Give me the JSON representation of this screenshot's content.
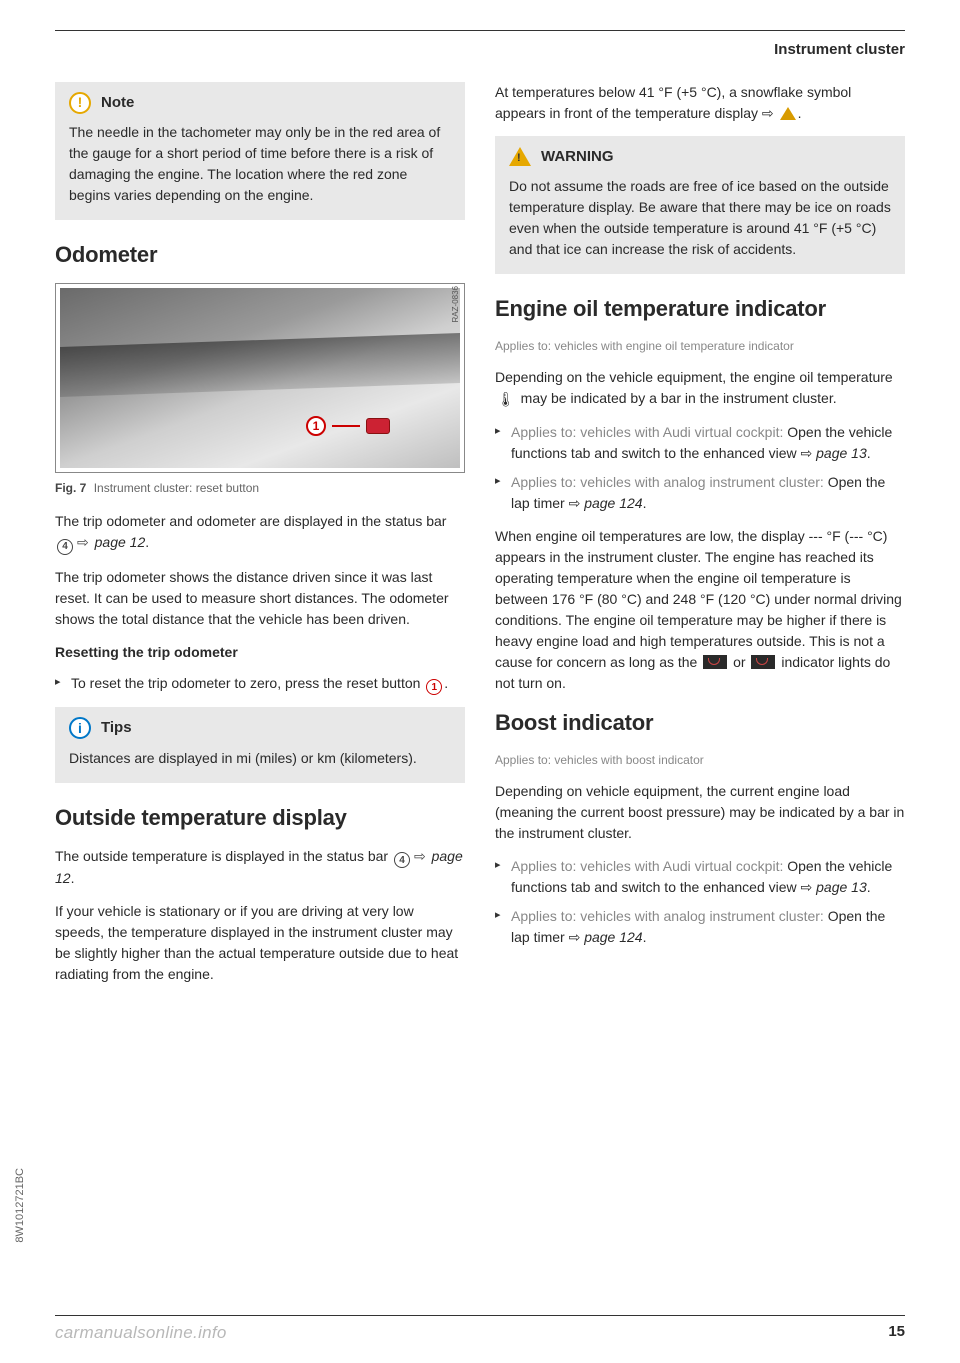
{
  "header": {
    "section_title": "Instrument cluster"
  },
  "left": {
    "note": {
      "title": "Note",
      "body": "The needle in the tachometer may only be in the red area of the gauge for a short period of time before there is a risk of damaging the engine. The location where the red zone begins varies depending on the engine."
    },
    "h_odometer": "Odometer",
    "fig7": {
      "side_label": "RAZ-0836",
      "callout_num": "1",
      "caption_label": "Fig. 7",
      "caption_text": "Instrument cluster: reset button"
    },
    "p_odo1_a": "The trip odometer and odometer are displayed in the status bar ",
    "ref4": "4",
    "p_odo1_b": " page 12",
    "p_odo1_c": ".",
    "p_odo2": "The trip odometer shows the distance driven since it was last reset. It can be used to measure short distances. The odometer shows the total distance that the vehicle has been driven.",
    "sub_reset": "Resetting the trip odometer",
    "li_reset_a": "To reset the trip odometer to zero, press the reset button ",
    "ref1": "1",
    "li_reset_b": ".",
    "tips": {
      "title": "Tips",
      "body": "Distances are displayed in mi (miles) or km (kilometers)."
    },
    "h_temp": "Outside temperature display",
    "p_temp1_a": "The outside temperature is displayed in the status bar ",
    "p_temp1_b": " page 12",
    "p_temp1_c": ".",
    "p_temp2": "If your vehicle is stationary or if you are driving at very low speeds, the temperature displayed in the instrument cluster may be slightly higher than the actual temperature outside due to heat radiating from the engine."
  },
  "right": {
    "p_snow_a": "At temperatures below 41 °F (+5 °C), a snowflake symbol appears in front of the temperature display ⇨ ",
    "p_snow_b": ".",
    "warning": {
      "title": "WARNING",
      "body": "Do not assume the roads are free of ice based on the outside temperature display. Be aware that there may be ice on roads even when the outside temperature is around 41 °F (+5 °C) and that ice can increase the risk of accidents."
    },
    "h_oil": "Engine oil temperature indicator",
    "applies_oil": "Applies to: vehicles with engine oil temperature indicator",
    "p_oil1_a": "Depending on the vehicle equipment, the engine oil temperature ",
    "p_oil1_b": " may be indicated by a bar in the instrument cluster.",
    "li_oil1_prefix": "Applies to: vehicles with Audi virtual cockpit:",
    "li_oil1_a": " Open the vehicle functions tab and switch to the enhanced view ⇨ ",
    "li_oil1_b": "page 13",
    "li_oil1_c": ".",
    "li_oil2_prefix": "Applies to: vehicles with analog instrument cluster:",
    "li_oil2_a": " Open the lap timer ⇨ ",
    "li_oil2_b": "page 124",
    "li_oil2_c": ".",
    "p_oil2_a": "When engine oil temperatures are low, the display --- °F (--- °C) appears in the instrument cluster. The engine has reached its operating temperature when the engine oil temperature is between 176 °F (80 °C) and 248 °F (120 °C) under normal driving conditions. The engine oil temperature may be higher if there is heavy engine load and high temperatures outside. This is not a cause for concern as long as the ",
    "p_oil2_b": " or ",
    "p_oil2_c": " indicator lights do not turn on.",
    "h_boost": "Boost indicator",
    "applies_boost": "Applies to: vehicles with boost indicator",
    "p_boost1": "Depending on vehicle equipment, the current engine load (meaning the current boost pressure) may be indicated by a bar in the instrument cluster.",
    "li_boost1_prefix": "Applies to: vehicles with Audi virtual cockpit:",
    "li_boost1_a": " Open the vehicle functions tab and switch to the enhanced view ⇨ ",
    "li_boost1_b": "page 13",
    "li_boost1_c": ".",
    "li_boost2_prefix": "Applies to: vehicles with analog instrument cluster:",
    "li_boost2_a": " Open the lap timer ⇨ ",
    "li_boost2_b": "page 124",
    "li_boost2_c": "."
  },
  "side_code": "8W1012721BC",
  "footer": {
    "page_num": "15",
    "watermark": "carmanualsonline.info"
  },
  "colors": {
    "callout_bg": "#e8e8e8",
    "note_icon": "#e6a800",
    "tips_icon": "#0077c8",
    "ref_red": "#c00",
    "text": "#2a2a2a",
    "gray": "#888"
  }
}
